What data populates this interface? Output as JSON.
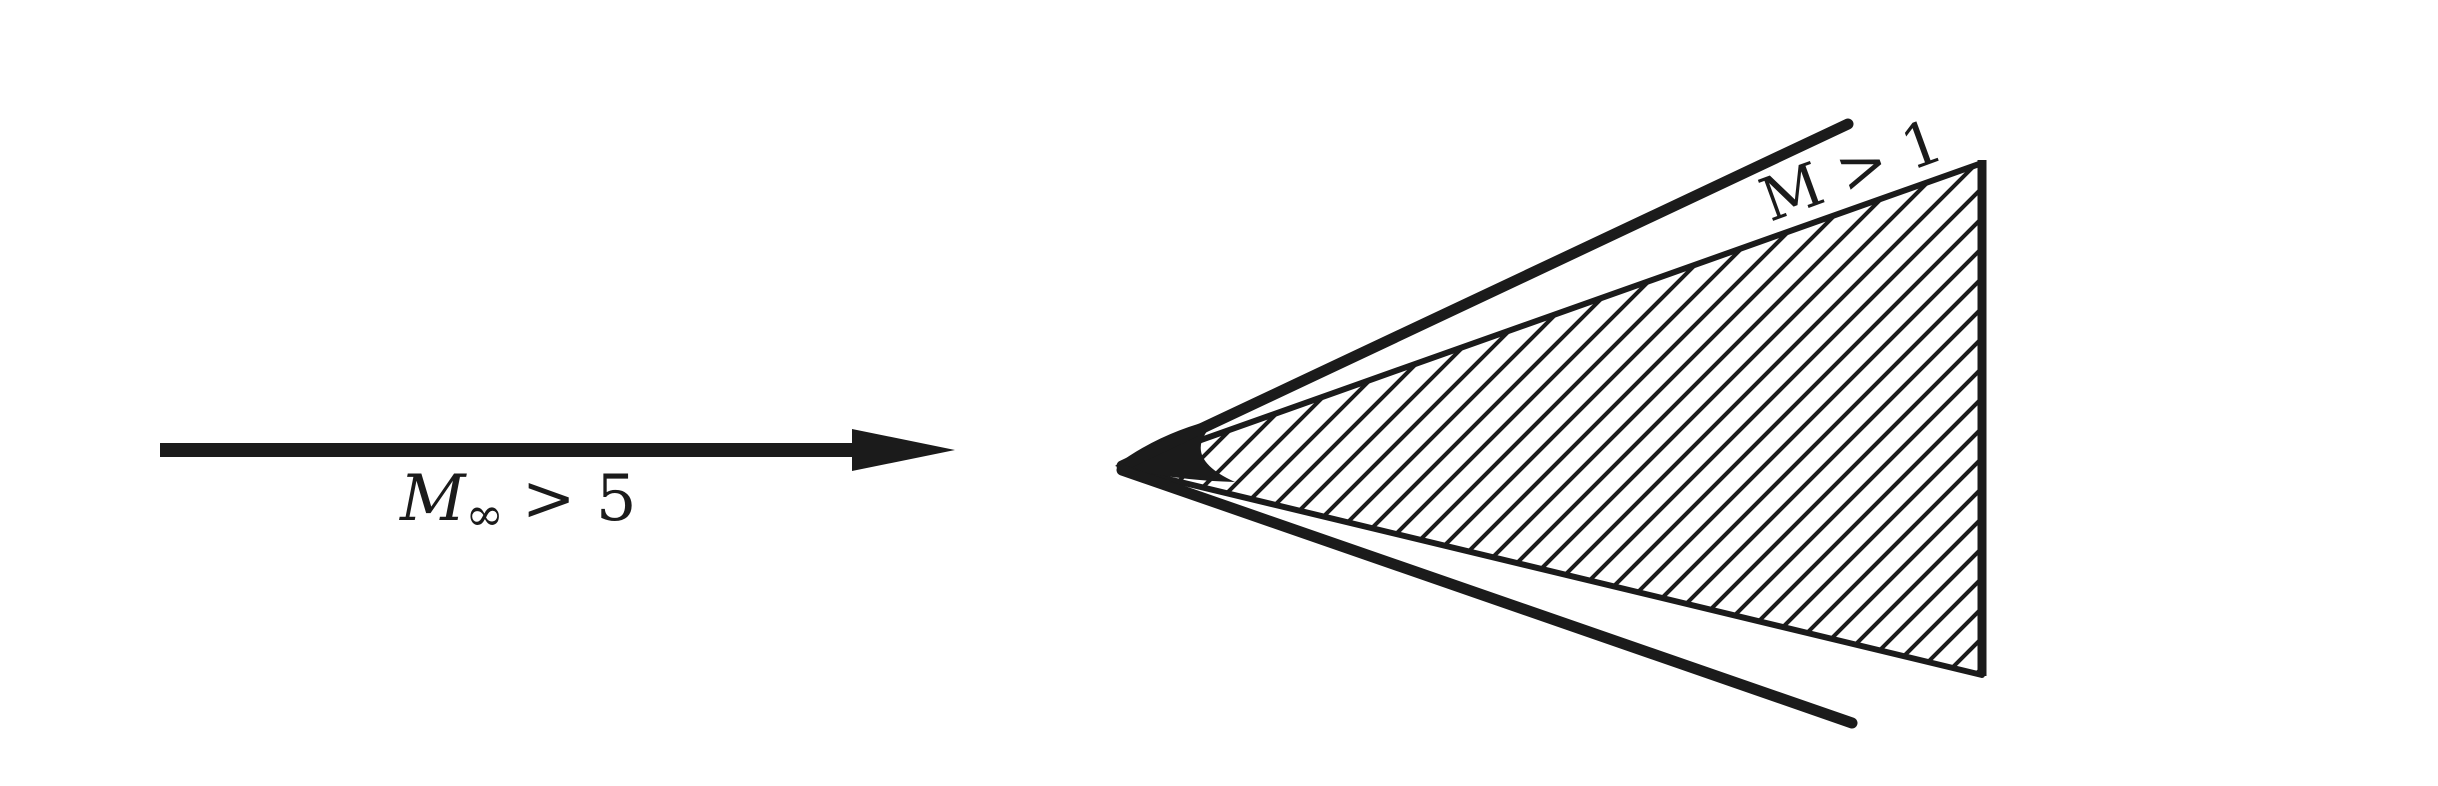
{
  "freestream_label": {
    "symbol": "M",
    "subscript": "∞",
    "relation": "> 5"
  },
  "surface_label": "M > 1",
  "colors": {
    "ink": "#1b1b1b",
    "background": "#ffffff"
  }
}
